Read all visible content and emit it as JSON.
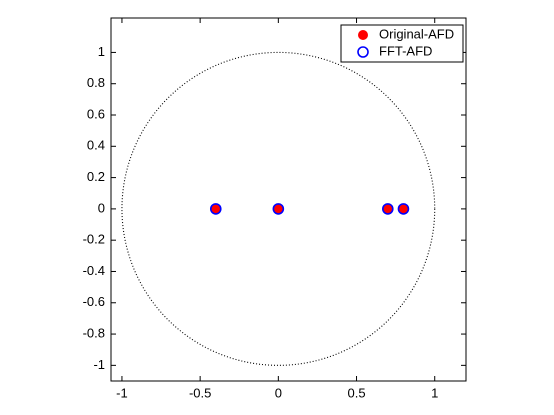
{
  "chart_data": {
    "type": "scatter",
    "x_points_note_free": null,
    "series": [
      {
        "name": "Original-AFD",
        "color": "#ff0000",
        "marker": "filled",
        "x": [
          -0.4,
          0,
          0.7,
          0.8
        ],
        "values": [
          0,
          0,
          0,
          0
        ]
      },
      {
        "name": "FFT-AFD",
        "color": "#0000ff",
        "marker": "open",
        "x": [
          -0.4,
          0,
          0.7,
          0.8
        ],
        "values": [
          0,
          0,
          0,
          0
        ]
      }
    ],
    "reference_circle": {
      "center": [
        0,
        0
      ],
      "radius": 1
    },
    "xlim": [
      -1.07,
      1.2
    ],
    "ylim": [
      -1.1,
      1.22
    ],
    "xticks": [
      -1,
      -0.5,
      0,
      0.5,
      1
    ],
    "yticks": [
      -1,
      -0.8,
      -0.6,
      -0.4,
      -0.2,
      0,
      0.2,
      0.4,
      0.6,
      0.8,
      1
    ],
    "legend": "top-right",
    "grid": false
  }
}
